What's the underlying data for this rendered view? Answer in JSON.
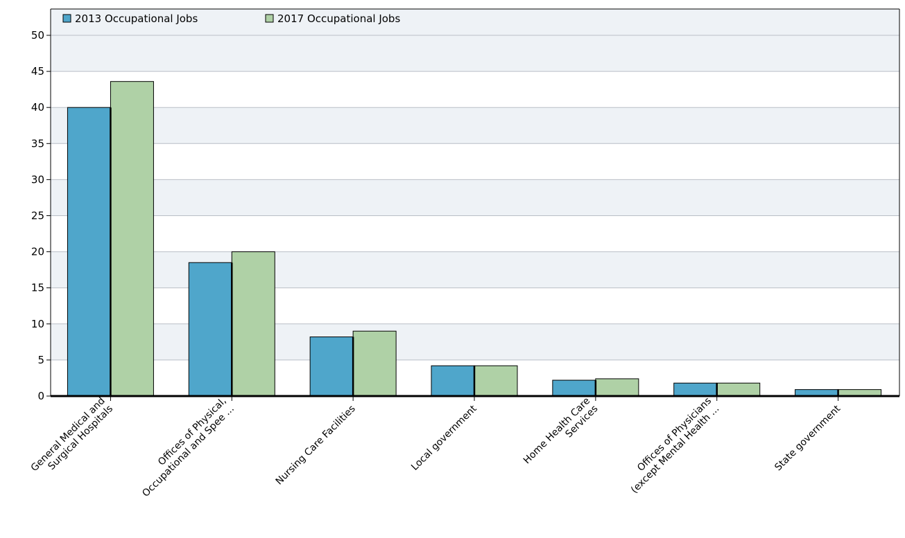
{
  "chart_data": {
    "type": "bar",
    "title": "",
    "xlabel": "",
    "ylabel": "",
    "ylim": [
      0,
      50
    ],
    "yticks": [
      0,
      5,
      10,
      15,
      20,
      25,
      30,
      35,
      40,
      45,
      50
    ],
    "grid": true,
    "legend_position": "top-left",
    "categories": [
      [
        "General Medical and",
        "Surgical Hospitals"
      ],
      [
        "Offices of Physical,",
        "Occupational and Spee ..."
      ],
      [
        "Nursing Care Facilities"
      ],
      [
        "Local government"
      ],
      [
        "Home Health Care",
        "Services"
      ],
      [
        "Offices of Physicians",
        "(except Mental Health ..."
      ],
      [
        "State government"
      ]
    ],
    "series": [
      {
        "name": "2013 Occupational Jobs",
        "color": "#4fa6cb",
        "values": [
          40.0,
          18.5,
          8.2,
          4.2,
          2.2,
          1.8,
          0.9
        ]
      },
      {
        "name": "2017 Occupational Jobs",
        "color": "#afd1a6",
        "values": [
          43.6,
          20.0,
          9.0,
          4.2,
          2.4,
          1.8,
          0.9
        ]
      }
    ],
    "band_colors": [
      "#eef2f6",
      "#ffffff"
    ],
    "gridline_color": "#b9bec6"
  }
}
